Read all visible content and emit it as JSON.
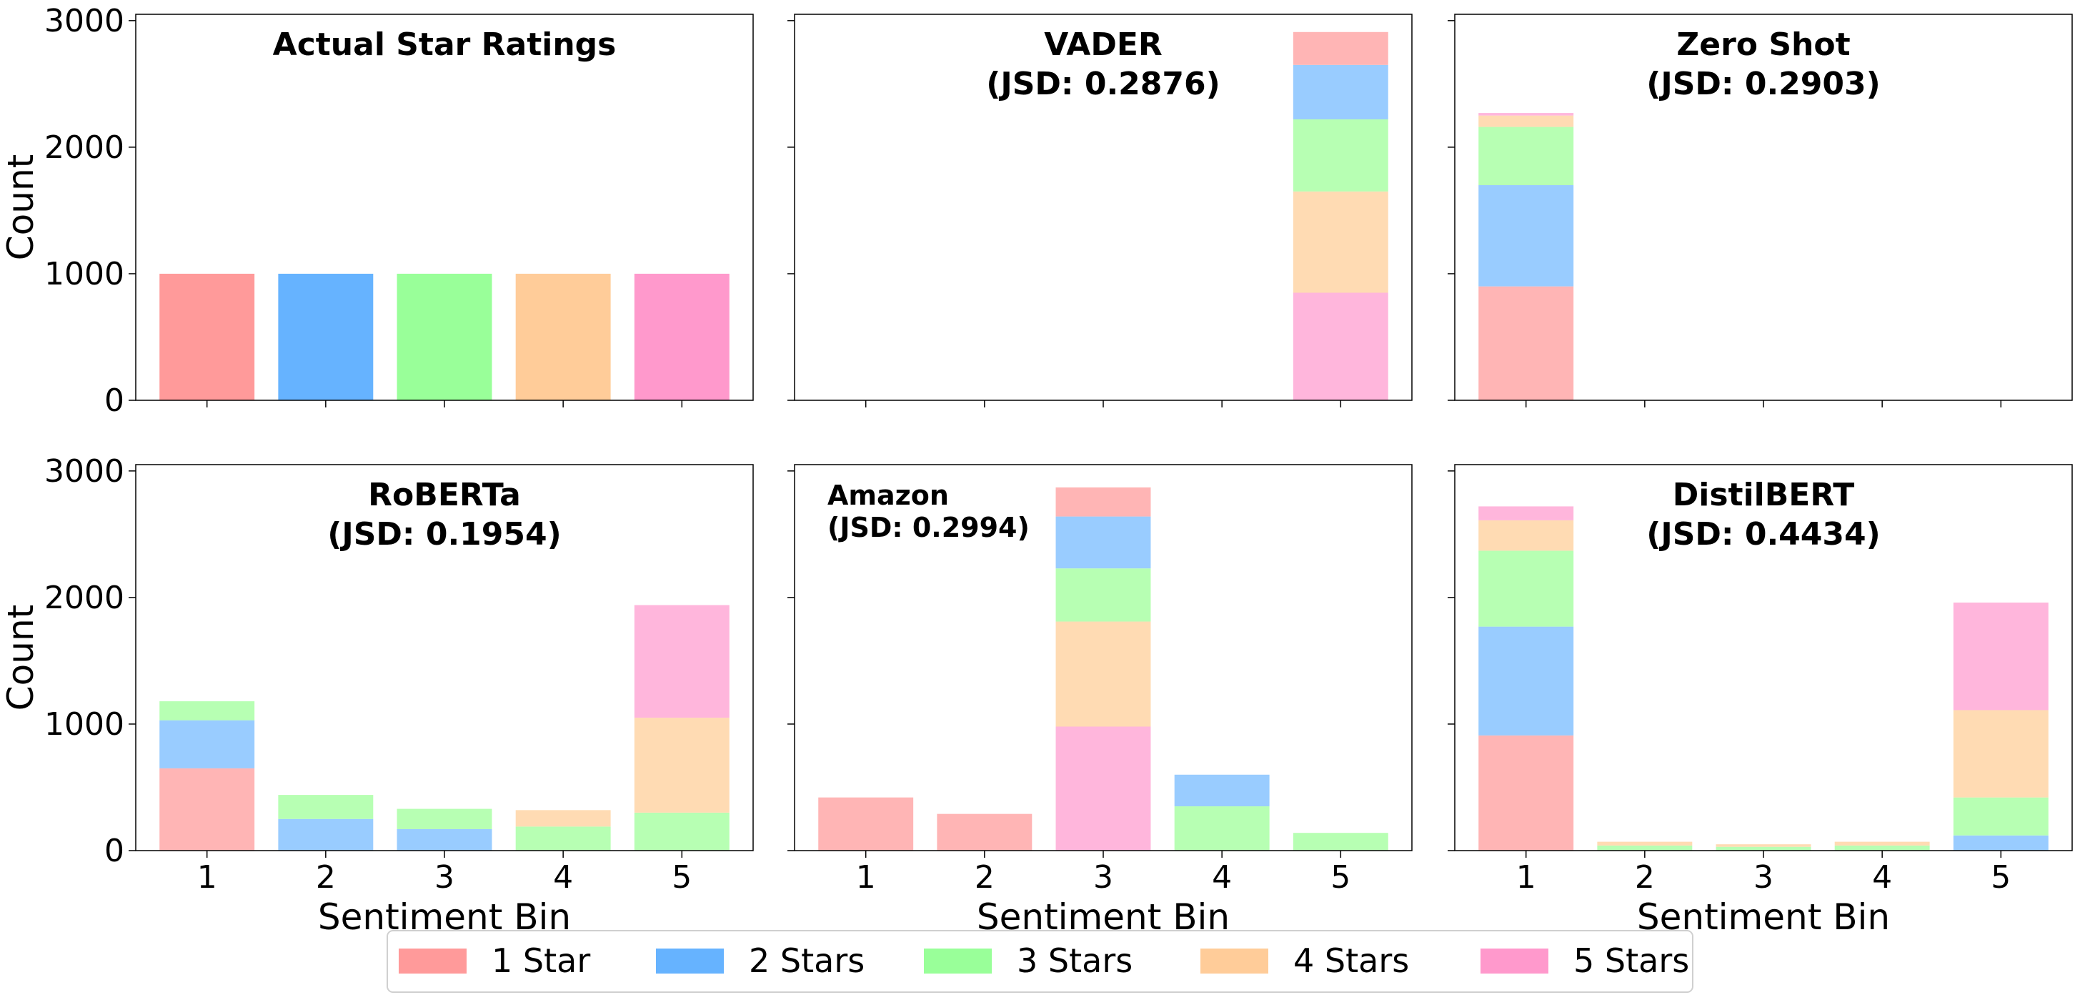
{
  "figure": {
    "legend_placement": "bottom-center",
    "legend_entries": [
      "1 Star",
      "2 Stars",
      "3 Stars",
      "4 Stars",
      "5 Stars"
    ],
    "shared_axes": {
      "x_categories": [
        "1",
        "2",
        "3",
        "4",
        "5"
      ],
      "y_ticks": [
        "0",
        "1000",
        "2000",
        "3000"
      ],
      "ylim": [
        0,
        3050
      ]
    }
  },
  "colors": {
    "actual": [
      "#ff9a9a",
      "#66b3ff",
      "#99ff99",
      "#ffcc99",
      "#ff99cc"
    ],
    "stacked": [
      "#ffb5b5",
      "#99ccff",
      "#b7ffb3",
      "#ffdbb3",
      "#ffb6dc"
    ]
  },
  "chart_data": [
    {
      "type": "bar",
      "title": "Actual Star Ratings",
      "title_align": "center",
      "xlabel": "",
      "ylabel": "Count",
      "categories": [
        "1",
        "2",
        "3",
        "4",
        "5"
      ],
      "ylim": [
        0,
        3050
      ],
      "stacked": false,
      "series": [
        {
          "name": "Actual Star Ratings",
          "values": [
            1000,
            1000,
            1000,
            1000,
            1000
          ]
        }
      ]
    },
    {
      "type": "bar",
      "title": "VADER",
      "subtitle": "(JSD: 0.2876)",
      "title_align": "center",
      "xlabel": "",
      "ylabel": "",
      "categories": [
        "1",
        "2",
        "3",
        "4",
        "5"
      ],
      "ylim": [
        0,
        3050
      ],
      "stacked": true,
      "series": [
        {
          "name": "5 Stars",
          "values": [
            0,
            0,
            0,
            0,
            850
          ]
        },
        {
          "name": "4 Stars",
          "values": [
            0,
            0,
            0,
            0,
            800
          ]
        },
        {
          "name": "3 Stars",
          "values": [
            0,
            0,
            0,
            0,
            570
          ]
        },
        {
          "name": "2 Stars",
          "values": [
            0,
            0,
            0,
            0,
            430
          ]
        },
        {
          "name": "1 Star",
          "values": [
            0,
            0,
            0,
            0,
            260
          ]
        }
      ]
    },
    {
      "type": "bar",
      "title": "Zero Shot",
      "subtitle": "(JSD: 0.2903)",
      "title_align": "center",
      "xlabel": "",
      "ylabel": "",
      "categories": [
        "1",
        "2",
        "3",
        "4",
        "5"
      ],
      "ylim": [
        0,
        3050
      ],
      "stacked": true,
      "series": [
        {
          "name": "1 Star",
          "values": [
            900,
            0,
            0,
            0,
            0
          ]
        },
        {
          "name": "2 Stars",
          "values": [
            800,
            0,
            0,
            0,
            0
          ]
        },
        {
          "name": "3 Stars",
          "values": [
            460,
            0,
            0,
            0,
            0
          ]
        },
        {
          "name": "4 Stars",
          "values": [
            90,
            0,
            0,
            0,
            0
          ]
        },
        {
          "name": "5 Stars",
          "values": [
            20,
            0,
            0,
            0,
            0
          ]
        }
      ]
    },
    {
      "type": "bar",
      "title": "RoBERTa",
      "subtitle": "(JSD: 0.1954)",
      "title_align": "center",
      "xlabel": "Sentiment Bin",
      "ylabel": "Count",
      "categories": [
        "1",
        "2",
        "3",
        "4",
        "5"
      ],
      "ylim": [
        0,
        3050
      ],
      "stacked": true,
      "series": [
        {
          "name": "1 Star",
          "values": [
            650,
            0,
            0,
            0,
            0
          ]
        },
        {
          "name": "2 Stars",
          "values": [
            380,
            250,
            170,
            0,
            0
          ]
        },
        {
          "name": "3 Stars",
          "values": [
            150,
            190,
            160,
            190,
            300
          ]
        },
        {
          "name": "4 Stars",
          "values": [
            0,
            0,
            0,
            130,
            750
          ]
        },
        {
          "name": "5 Stars",
          "values": [
            0,
            0,
            0,
            0,
            890
          ]
        }
      ]
    },
    {
      "type": "bar",
      "title": "Amazon",
      "subtitle": "(JSD: 0.2994)",
      "title_align": "left",
      "xlabel": "Sentiment Bin",
      "ylabel": "",
      "categories": [
        "1",
        "2",
        "3",
        "4",
        "5"
      ],
      "ylim": [
        0,
        3050
      ],
      "stacked": true,
      "series": [
        {
          "name": "5 Stars",
          "values": [
            0,
            0,
            980,
            0,
            0
          ]
        },
        {
          "name": "4 Stars",
          "values": [
            0,
            0,
            830,
            0,
            0
          ]
        },
        {
          "name": "3 Stars",
          "values": [
            0,
            0,
            420,
            350,
            140
          ]
        },
        {
          "name": "2 Stars",
          "values": [
            0,
            0,
            410,
            250,
            0
          ]
        },
        {
          "name": "1 Star",
          "values": [
            420,
            290,
            230,
            0,
            0
          ]
        }
      ]
    },
    {
      "type": "bar",
      "title": "DistilBERT",
      "subtitle": "(JSD: 0.4434)",
      "title_align": "center",
      "xlabel": "Sentiment Bin",
      "ylabel": "",
      "categories": [
        "1",
        "2",
        "3",
        "4",
        "5"
      ],
      "ylim": [
        0,
        3050
      ],
      "stacked": true,
      "series": [
        {
          "name": "1 Star",
          "values": [
            910,
            0,
            0,
            0,
            0
          ]
        },
        {
          "name": "2 Stars",
          "values": [
            860,
            0,
            0,
            0,
            120
          ]
        },
        {
          "name": "3 Stars",
          "values": [
            600,
            40,
            30,
            40,
            300
          ]
        },
        {
          "name": "4 Stars",
          "values": [
            240,
            30,
            20,
            30,
            690
          ]
        },
        {
          "name": "5 Stars",
          "values": [
            110,
            0,
            0,
            0,
            850
          ]
        }
      ]
    }
  ]
}
